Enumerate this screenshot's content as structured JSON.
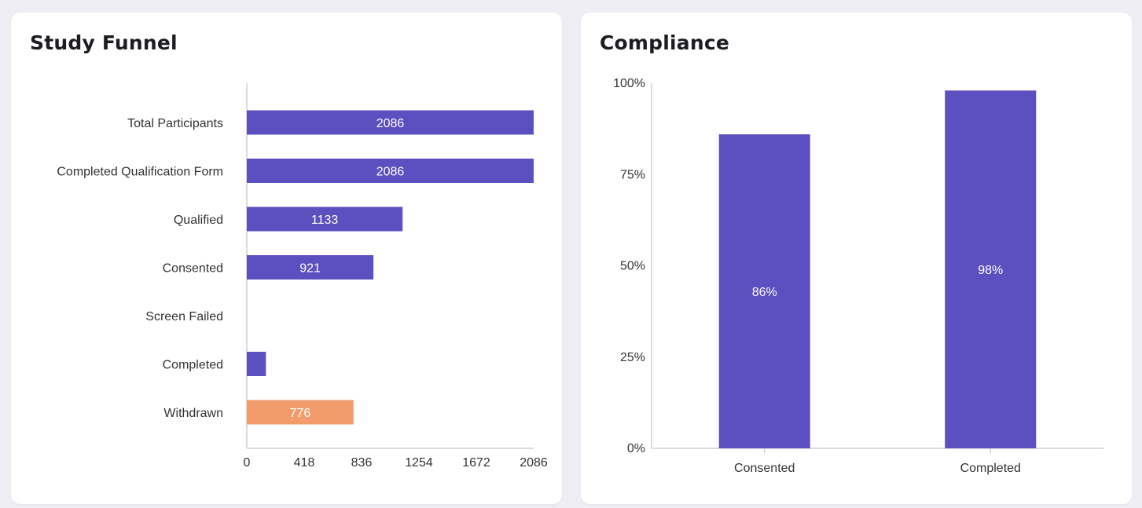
{
  "colors": {
    "bar": "#5c50c0",
    "bar_highlight": "#f19c6a",
    "axis": "#cfcfd6",
    "label": "#333333",
    "value_text": "#ffffff"
  },
  "funnel": {
    "title": "Study Funnel"
  },
  "compliance": {
    "title": "Compliance"
  },
  "chart_data": [
    {
      "type": "bar",
      "orientation": "horizontal",
      "title": "Study Funnel",
      "categories": [
        "Total Participants",
        "Completed Qualification Form",
        "Qualified",
        "Consented",
        "Screen Failed",
        "Completed",
        "Withdrawn"
      ],
      "values": [
        2086,
        2086,
        1133,
        921,
        0,
        139,
        776
      ],
      "value_labels": [
        "2086",
        "2086",
        "1133",
        "921",
        "",
        "",
        "776"
      ],
      "highlight": [
        false,
        false,
        false,
        false,
        false,
        false,
        true
      ],
      "xlim": [
        0,
        2086
      ],
      "ticks": [
        "0",
        "418",
        "836",
        "1254",
        "1672",
        "2086"
      ],
      "xlabel": "",
      "ylabel": ""
    },
    {
      "type": "bar",
      "orientation": "vertical",
      "title": "Compliance",
      "categories": [
        "Consented",
        "Completed"
      ],
      "values": [
        86,
        98
      ],
      "value_labels": [
        "86%",
        "98%"
      ],
      "ylim": [
        0,
        100
      ],
      "ticks": [
        "0%",
        "25%",
        "50%",
        "75%",
        "100%"
      ],
      "xlabel": "",
      "ylabel": ""
    }
  ]
}
